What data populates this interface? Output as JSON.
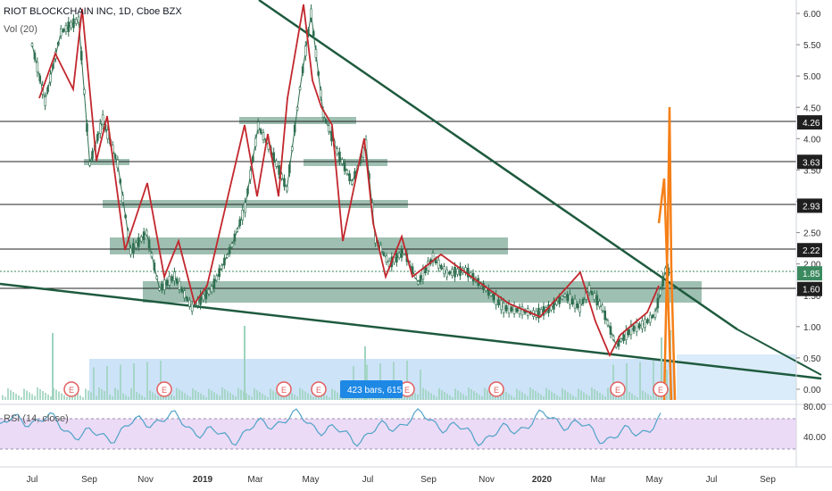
{
  "header": {
    "symbol": "RIOT BLOCKCHAIN INC, 1D, Cboe BZX",
    "volume_label": "Vol (20)",
    "rsi_label": "RSI (14, close)"
  },
  "range_badge": {
    "text": "423 bars, 615"
  },
  "earnings_marker": "E",
  "colors": {
    "candle": "#2f6f50",
    "zigzag": "#c2272d",
    "trendline": "#1e5a3e",
    "zone": "#4f8c72",
    "projection": "#f57f17",
    "rsi": "#4fa3c8",
    "rsi_band": "#ecdbf6",
    "range_fill": "#bcdaf5",
    "badge": "#1e88e5",
    "earnings": "#e35d5d"
  },
  "chart_data": {
    "type": "line",
    "title": "RIOT BLOCKCHAIN INC, 1D, Cboe BZX",
    "xlabel": "",
    "ylabel": "",
    "x_ticks": [
      "Jul",
      "Sep",
      "Nov",
      "2019",
      "Mar",
      "May",
      "Jul",
      "Sep",
      "Nov",
      "2020",
      "Mar",
      "May",
      "Jul",
      "Sep"
    ],
    "y_ticks": [
      "6.00",
      "5.50",
      "5.00",
      "4.50",
      "4.00",
      "3.50",
      "3.00",
      "2.50",
      "2.00",
      "1.50",
      "1.00",
      "0.50",
      "0.00"
    ],
    "ylim": [
      -0.2,
      6.2
    ],
    "grid": false,
    "horizontal_levels": [
      4.26,
      3.63,
      2.93,
      2.22,
      1.6
    ],
    "last_price": 1.85,
    "last_price_label": "1.85",
    "level_labels": [
      "4.26",
      "3.63",
      "2.93",
      "2.22",
      "1.60"
    ],
    "series": [
      {
        "name": "RIOT BLOCKCHAIN INC",
        "x": [
          "2018-07-01",
          "2018-07-15",
          "2018-08-01",
          "2018-08-20",
          "2018-09-01",
          "2018-09-15",
          "2018-10-01",
          "2018-10-15",
          "2018-11-01",
          "2018-11-15",
          "2018-12-01",
          "2018-12-20",
          "2019-01-10",
          "2019-02-01",
          "2019-02-15",
          "2019-03-01",
          "2019-03-15",
          "2019-04-01",
          "2019-04-15",
          "2019-04-27",
          "2019-05-10",
          "2019-05-25",
          "2019-06-10",
          "2019-06-25",
          "2019-07-05",
          "2019-07-20",
          "2019-08-05",
          "2019-08-20",
          "2019-09-05",
          "2019-09-20",
          "2019-10-10",
          "2019-11-01",
          "2019-11-20",
          "2019-12-10",
          "2019-12-25",
          "2020-01-10",
          "2020-01-25",
          "2020-02-10",
          "2020-02-20",
          "2020-03-05",
          "2020-03-20",
          "2020-04-05",
          "2020-04-20",
          "2020-05-01",
          "2020-05-12",
          "2020-05-18"
        ],
        "values": [
          5.5,
          4.6,
          5.7,
          5.9,
          3.6,
          4.3,
          3.6,
          2.2,
          2.5,
          1.6,
          1.8,
          1.3,
          1.6,
          2.3,
          2.9,
          4.2,
          3.8,
          3.2,
          4.8,
          6.0,
          4.4,
          3.8,
          3.3,
          3.9,
          2.4,
          2.0,
          2.2,
          1.7,
          2.1,
          1.85,
          1.9,
          1.6,
          1.3,
          1.25,
          1.2,
          1.3,
          1.5,
          1.3,
          1.6,
          1.3,
          0.7,
          0.95,
          1.05,
          1.2,
          1.9,
          1.85
        ]
      }
    ],
    "volume_label": "Vol (20)",
    "rsi": {
      "name": "RSI (14, close)",
      "y_ticks": [
        "80.00",
        "40.00"
      ],
      "ylim": [
        0,
        100
      ],
      "band": [
        30,
        70
      ]
    }
  }
}
